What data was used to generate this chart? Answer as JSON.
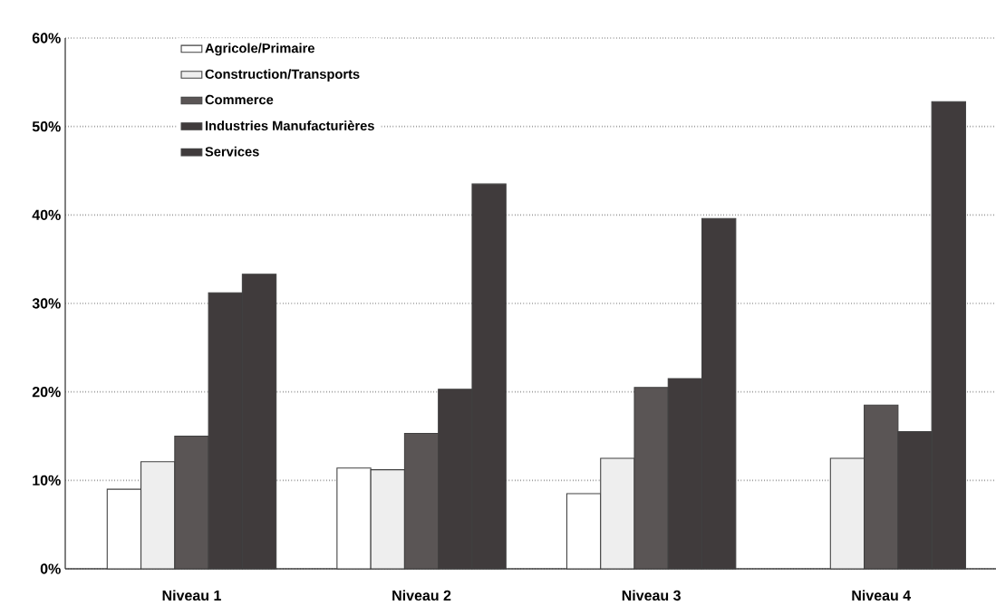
{
  "chart_data": {
    "type": "bar",
    "categories": [
      "Niveau 1",
      "Niveau 2",
      "Niveau 3",
      "Niveau 4"
    ],
    "series": [
      {
        "name": "Agricole/Primaire",
        "color": "#ffffff",
        "values": [
          9.0,
          11.4,
          8.5,
          null
        ]
      },
      {
        "name": "Construction/Transports",
        "color": "#eeeeee",
        "values": [
          12.1,
          11.2,
          12.5,
          12.5
        ]
      },
      {
        "name": "Commerce",
        "color": "#5a5555",
        "values": [
          15.0,
          15.3,
          20.5,
          18.5
        ]
      },
      {
        "name": "Industries Manufacturières",
        "color": "#403b3c",
        "values": [
          31.2,
          20.3,
          21.5,
          15.5
        ]
      },
      {
        "name": "Services",
        "color": "#403b3c",
        "values": [
          33.3,
          43.5,
          39.6,
          52.8
        ]
      }
    ],
    "ylim": [
      0,
      60
    ],
    "yticks": [
      {
        "value": 0,
        "label": "0%"
      },
      {
        "value": 10,
        "label": "10%"
      },
      {
        "value": 20,
        "label": "20%"
      },
      {
        "value": 30,
        "label": "30%"
      },
      {
        "value": 40,
        "label": "40%"
      },
      {
        "value": 50,
        "label": "50%"
      },
      {
        "value": 60,
        "label": "60%"
      }
    ],
    "grid": "y",
    "legend": "top left"
  }
}
